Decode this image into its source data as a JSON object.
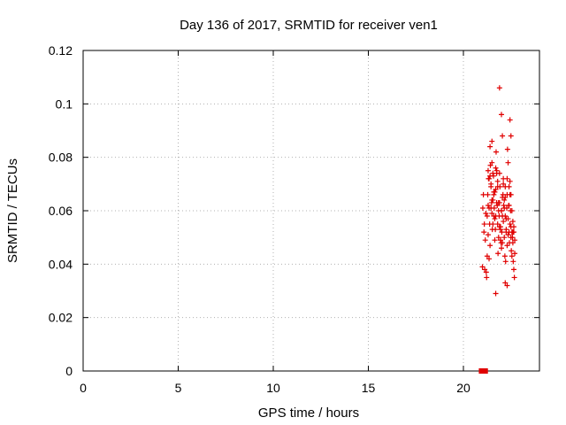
{
  "chart_data": {
    "type": "scatter",
    "title": "Day 136 of 2017, SRMTID for receiver ven1",
    "xlabel": "GPS time / hours",
    "ylabel": "SRMTID / TECUs",
    "xlim": [
      0,
      24
    ],
    "ylim": [
      0,
      0.12
    ],
    "xticks": [
      0,
      5,
      10,
      15,
      20
    ],
    "xtick_labels": [
      "0",
      "5",
      "10",
      "15",
      "20"
    ],
    "yticks": [
      0,
      0.02,
      0.04,
      0.06,
      0.08,
      0.1,
      0.12
    ],
    "ytick_labels": [
      "0",
      "0.02",
      "0.04",
      "0.06",
      "0.08",
      "0.1",
      "0.12"
    ],
    "grid": true,
    "marker_color": "#e00000",
    "series": [
      {
        "name": "SRMTID",
        "marker": "plus",
        "x": [
          21.0,
          21.02,
          21.05,
          21.08,
          21.1,
          21.12,
          21.15,
          21.18,
          21.2,
          21.22,
          21.25,
          21.28,
          21.3,
          21.32,
          21.35,
          21.38,
          21.4,
          21.42,
          21.45,
          21.48,
          21.5,
          21.52,
          21.55,
          21.58,
          21.6,
          21.62,
          21.65,
          21.68,
          21.7,
          21.72,
          21.75,
          21.78,
          21.8,
          21.82,
          21.85,
          21.88,
          21.9,
          21.92,
          21.95,
          21.98,
          22.0,
          22.02,
          22.05,
          22.08,
          22.1,
          22.12,
          22.15,
          22.18,
          22.2,
          22.22,
          22.25,
          22.28,
          22.3,
          22.32,
          22.35,
          22.38,
          22.4,
          22.42,
          22.45,
          22.48,
          22.5,
          22.52,
          22.55,
          22.58,
          22.6,
          22.62,
          22.65,
          22.68,
          22.7,
          21.25,
          21.3,
          21.35,
          21.45,
          21.5,
          21.55,
          21.6,
          21.65,
          21.7,
          21.75,
          21.8,
          21.85,
          21.9,
          21.95,
          22.0,
          22.05,
          22.1,
          22.15,
          22.2,
          22.25,
          22.3,
          22.35,
          22.4,
          22.45,
          22.5,
          22.55,
          22.6,
          22.65,
          22.7,
          21.3,
          21.4,
          21.5,
          21.6,
          21.7,
          21.8,
          21.9,
          22.0,
          22.1,
          22.2,
          22.3,
          22.4,
          22.5,
          22.6,
          21.35,
          21.45,
          21.55,
          21.65,
          21.75,
          21.85,
          21.95,
          22.05,
          22.15,
          22.25,
          22.35,
          22.45,
          22.55,
          22.65,
          21.9,
          22.0,
          22.05,
          22.45,
          22.5,
          21.5,
          22.2,
          22.3,
          21.7,
          21.4
        ],
        "y": [
          0.039,
          0.061,
          0.066,
          0.052,
          0.055,
          0.038,
          0.049,
          0.059,
          0.037,
          0.035,
          0.043,
          0.066,
          0.075,
          0.072,
          0.061,
          0.055,
          0.047,
          0.077,
          0.07,
          0.063,
          0.059,
          0.053,
          0.064,
          0.073,
          0.066,
          0.061,
          0.057,
          0.053,
          0.068,
          0.082,
          0.075,
          0.062,
          0.055,
          0.044,
          0.05,
          0.058,
          0.063,
          0.069,
          0.054,
          0.048,
          0.06,
          0.052,
          0.058,
          0.066,
          0.072,
          0.062,
          0.05,
          0.043,
          0.033,
          0.041,
          0.052,
          0.061,
          0.066,
          0.083,
          0.078,
          0.062,
          0.052,
          0.048,
          0.055,
          0.06,
          0.05,
          0.045,
          0.043,
          0.05,
          0.056,
          0.041,
          0.038,
          0.035,
          0.044,
          0.058,
          0.051,
          0.042,
          0.069,
          0.078,
          0.074,
          0.067,
          0.049,
          0.058,
          0.063,
          0.071,
          0.06,
          0.054,
          0.049,
          0.046,
          0.065,
          0.07,
          0.064,
          0.058,
          0.053,
          0.047,
          0.057,
          0.062,
          0.071,
          0.066,
          0.052,
          0.048,
          0.052,
          0.049,
          0.062,
          0.073,
          0.064,
          0.058,
          0.076,
          0.069,
          0.074,
          0.06,
          0.056,
          0.065,
          0.072,
          0.069,
          0.054,
          0.052,
          0.072,
          0.061,
          0.055,
          0.067,
          0.074,
          0.063,
          0.053,
          0.048,
          0.061,
          0.057,
          0.051,
          0.066,
          0.06,
          0.054,
          0.106,
          0.096,
          0.088,
          0.094,
          0.088,
          0.086,
          0.069,
          0.032,
          0.029,
          0.084
        ],
        "zeros_x": [
          20.95,
          21.15
        ],
        "zeros_y": [
          0,
          0
        ]
      }
    ]
  }
}
